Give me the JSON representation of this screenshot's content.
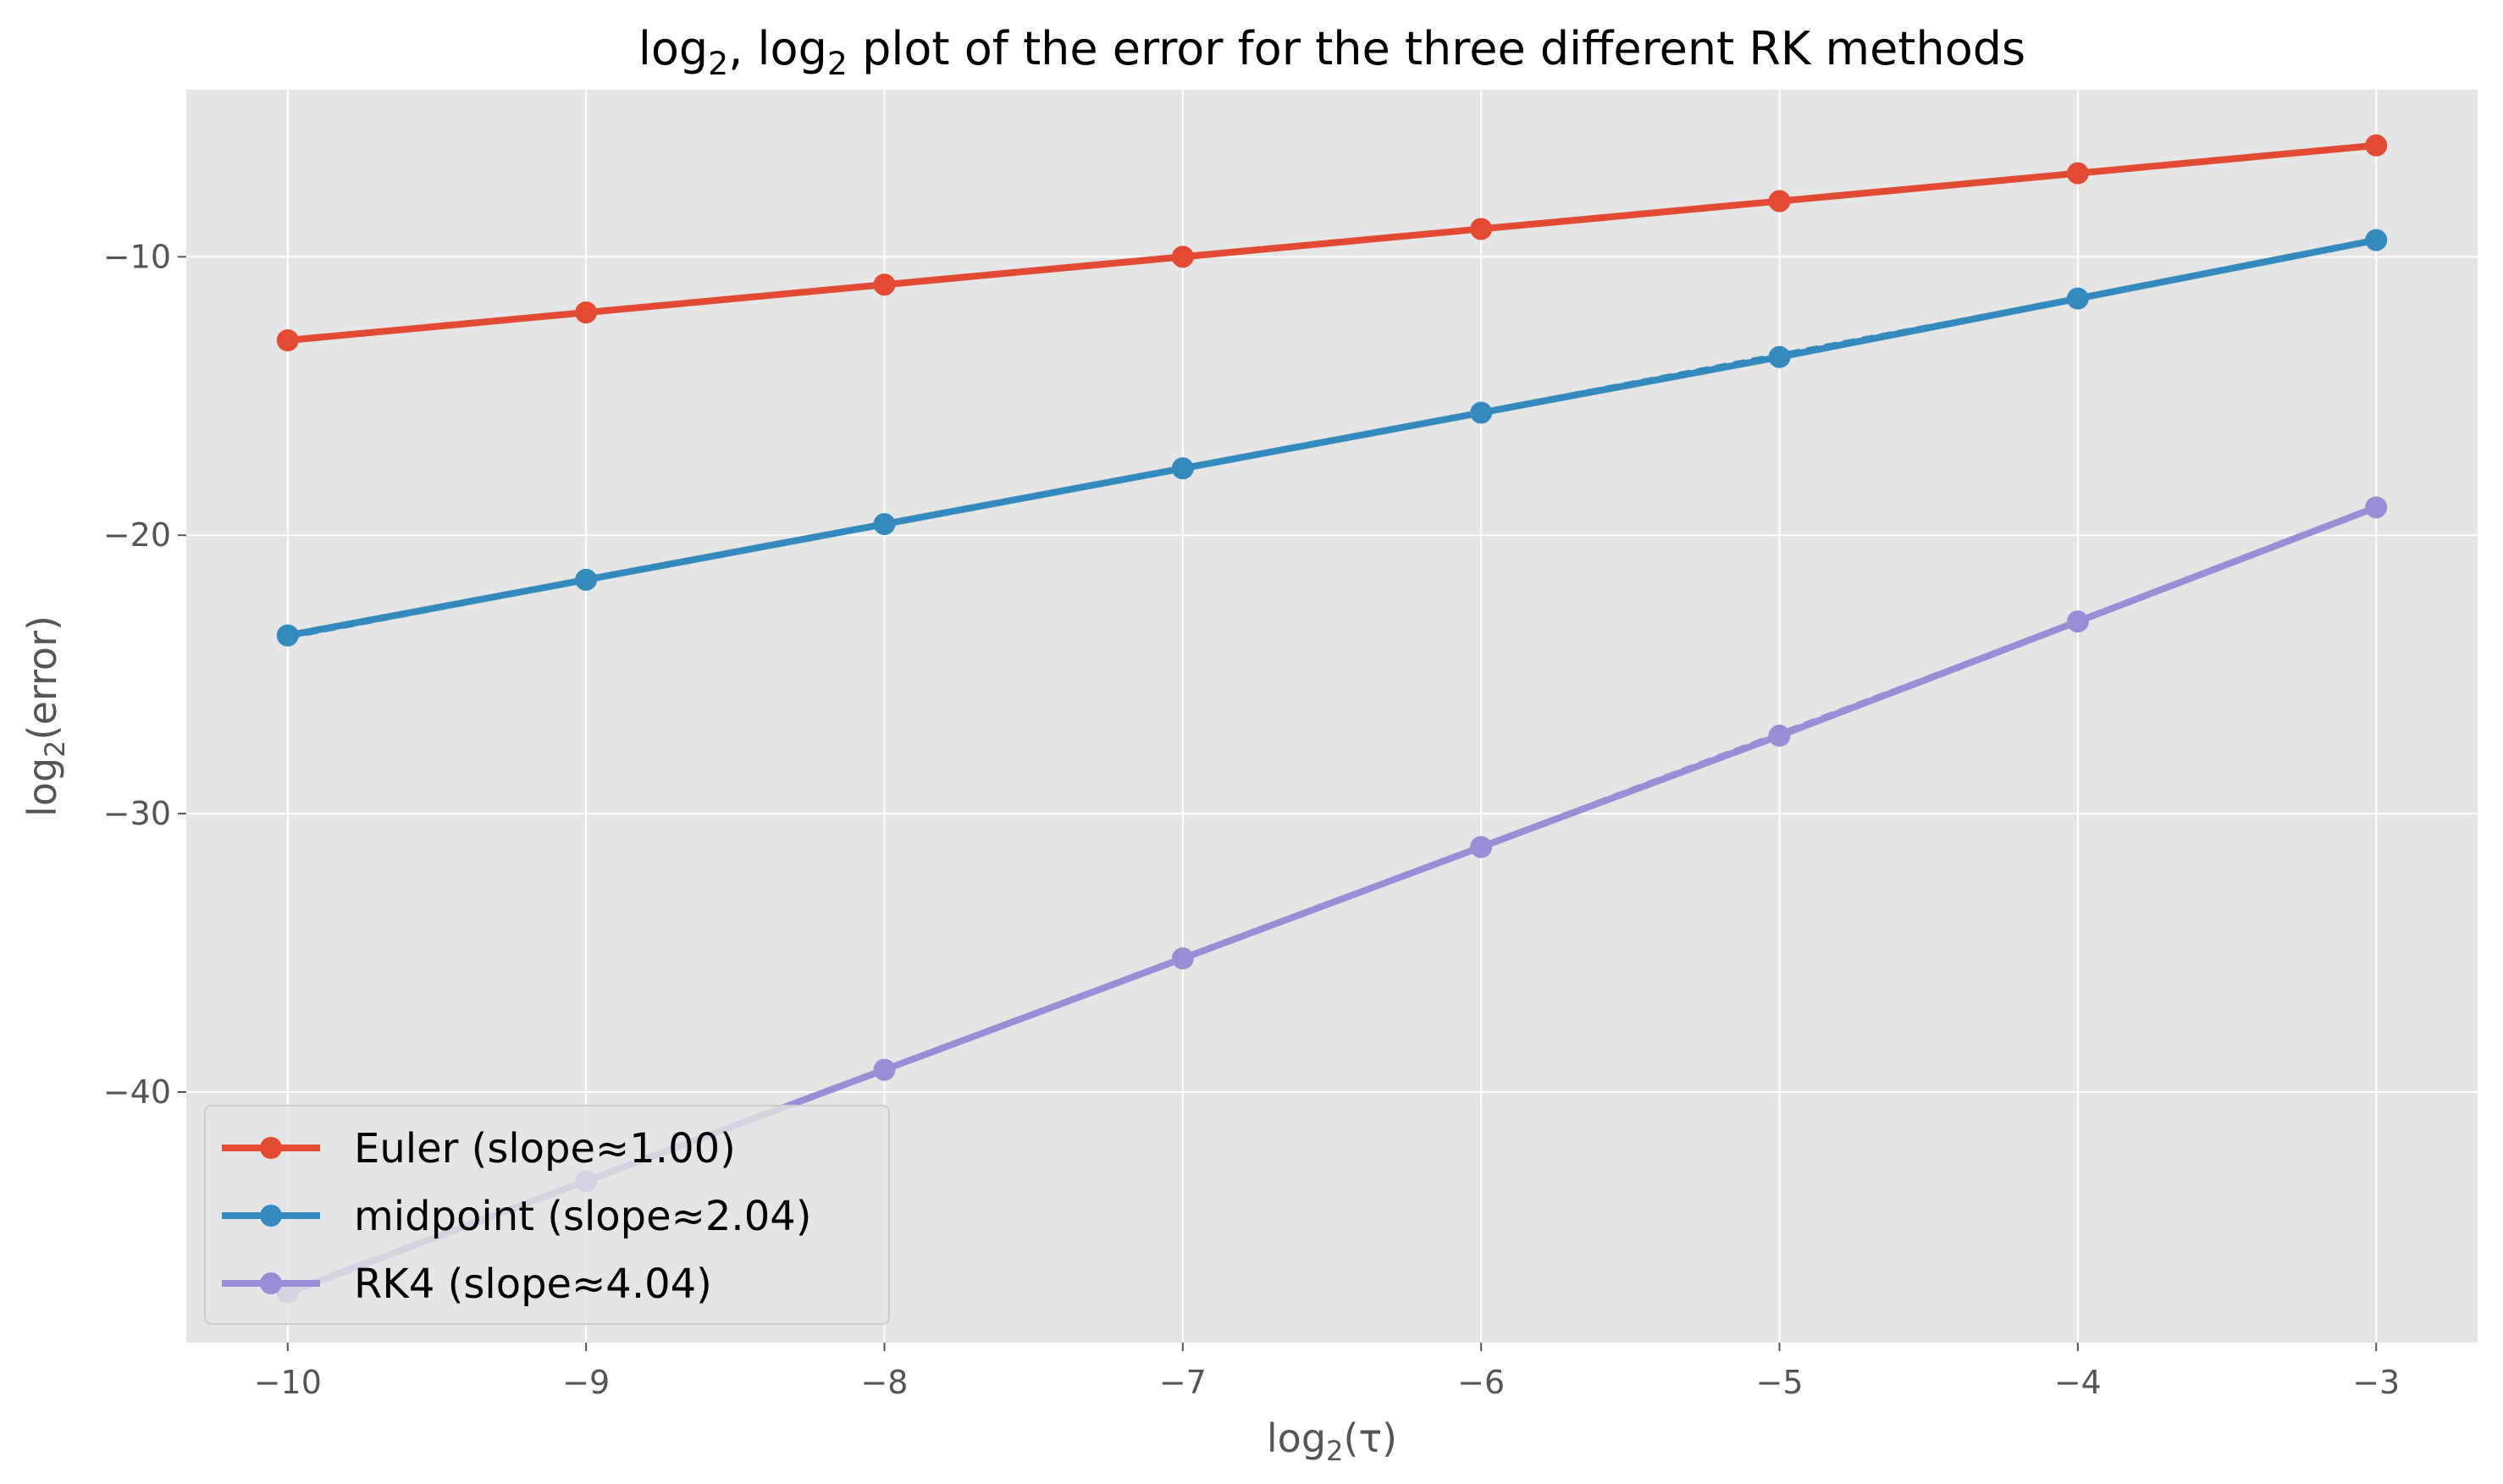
{
  "chart_data": {
    "type": "line",
    "title_parts": {
      "a": "log",
      "a_sub": "2",
      "b": ", log",
      "b_sub": "2",
      "rest": "  plot of the error for the three different RK methods"
    },
    "xlabel_parts": {
      "a": "log",
      "a_sub": "2",
      "rest": "(τ)"
    },
    "ylabel_parts": {
      "a": "log",
      "a_sub": "2",
      "rest": "(error)"
    },
    "x": [
      -10,
      -9,
      -8,
      -7,
      -6,
      -5,
      -4,
      -3
    ],
    "xlim": [
      -10.34,
      -2.66
    ],
    "ylim": [
      -49.0,
      -4.0
    ],
    "xticks": [
      -10,
      -9,
      -8,
      -7,
      -6,
      -5,
      -4,
      -3
    ],
    "yticks": [
      -10,
      -20,
      -30,
      -40
    ],
    "grid": true,
    "background": "#e5e5e5",
    "legend_position": "lower-left",
    "series": [
      {
        "name": "Euler (slope≈1.00)",
        "color": "#e24a33",
        "values": [
          -13.0,
          -12.0,
          -11.0,
          -10.0,
          -9.0,
          -8.0,
          -7.0,
          -6.0
        ],
        "fit": [
          -13.0,
          -6.0
        ]
      },
      {
        "name": "midpoint (slope≈2.04)",
        "color": "#348abd",
        "values": [
          -23.6,
          -21.6,
          -19.6,
          -17.6,
          -15.6,
          -13.6,
          -11.5,
          -9.4
        ],
        "fit": [
          -23.7,
          -9.4
        ]
      },
      {
        "name": "RK4 (slope≈4.04)",
        "color": "#988ed5",
        "values": [
          -47.2,
          -43.2,
          -39.2,
          -35.2,
          -31.2,
          -27.2,
          -23.1,
          -19.0
        ],
        "fit": [
          -47.3,
          -19.0
        ]
      }
    ]
  }
}
